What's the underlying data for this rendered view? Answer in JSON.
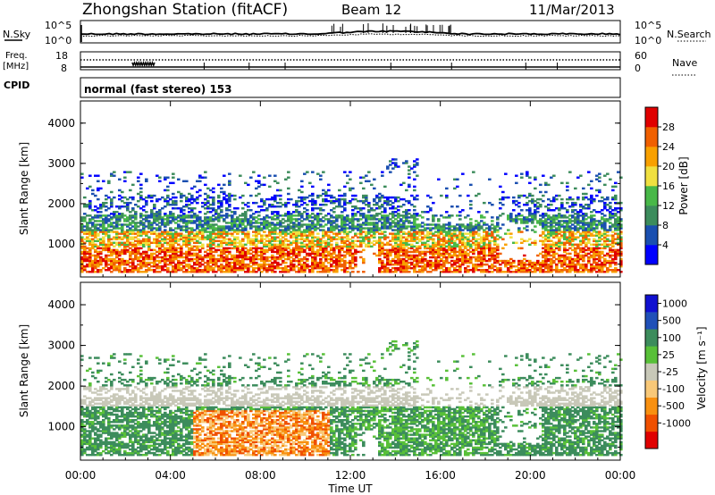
{
  "header": {
    "title": "Zhongshan Station (fitACF)",
    "beam": "Beam 12",
    "date": "11/Mar/2013"
  },
  "noise_panel": {
    "left_label": "N.Sky",
    "right_label": "N.Search",
    "left_ticks": [
      "10^5",
      "10^0"
    ],
    "right_ticks": [
      "10^5",
      "10^0"
    ]
  },
  "freq_panel": {
    "left_label_1": "Freq.",
    "left_label_2": "[MHz]",
    "left_ticks": [
      "18",
      "8"
    ],
    "right_label": "Nave",
    "right_ticks": [
      "60",
      "0"
    ]
  },
  "cpid": {
    "label": "CPID",
    "value": "normal (fast stereo) 153"
  },
  "axes": {
    "y_label": "Slant Range [km]",
    "y_ticks": [
      "4000",
      "3000",
      "2000",
      "1000"
    ],
    "x_ticks": [
      "00:00",
      "04:00",
      "08:00",
      "12:00",
      "16:00",
      "20:00",
      "00:00"
    ],
    "x_label": "Time UT"
  },
  "colors": {
    "power": [
      "#0000ff",
      "#1a4fb0",
      "#3c8c5c",
      "#48b848",
      "#f0e040",
      "#f8a000",
      "#f06000",
      "#e00000"
    ],
    "velocity": [
      "#e00000",
      "#f05000",
      "#f89010",
      "#f8c878",
      "#c8c8b8",
      "#58c038",
      "#3c8c5c",
      "#2050b8",
      "#1010d0"
    ],
    "ground": "#a0a0a0"
  },
  "chart_data": [
    {
      "type": "heatmap",
      "name": "power",
      "ylabel": "Slant Range [km]",
      "xlabel": "",
      "x_range_hours": [
        0,
        24
      ],
      "y_range_km": [
        180,
        4550
      ],
      "colorbar": {
        "label": "Power [dB]",
        "ticks": [
          "28",
          "24",
          "20",
          "16",
          "12",
          "8",
          "4"
        ],
        "range": [
          0,
          32
        ]
      }
    },
    {
      "type": "heatmap",
      "name": "velocity",
      "ylabel": "Slant Range [km]",
      "xlabel": "Time UT",
      "x_range_hours": [
        0,
        24
      ],
      "y_range_km": [
        180,
        4550
      ],
      "colorbar": {
        "label": "Velocity [m s⁻¹]",
        "ticks": [
          "1000",
          "500",
          "100",
          "25",
          "-25",
          "-100",
          "-500",
          "-1000"
        ]
      }
    }
  ]
}
